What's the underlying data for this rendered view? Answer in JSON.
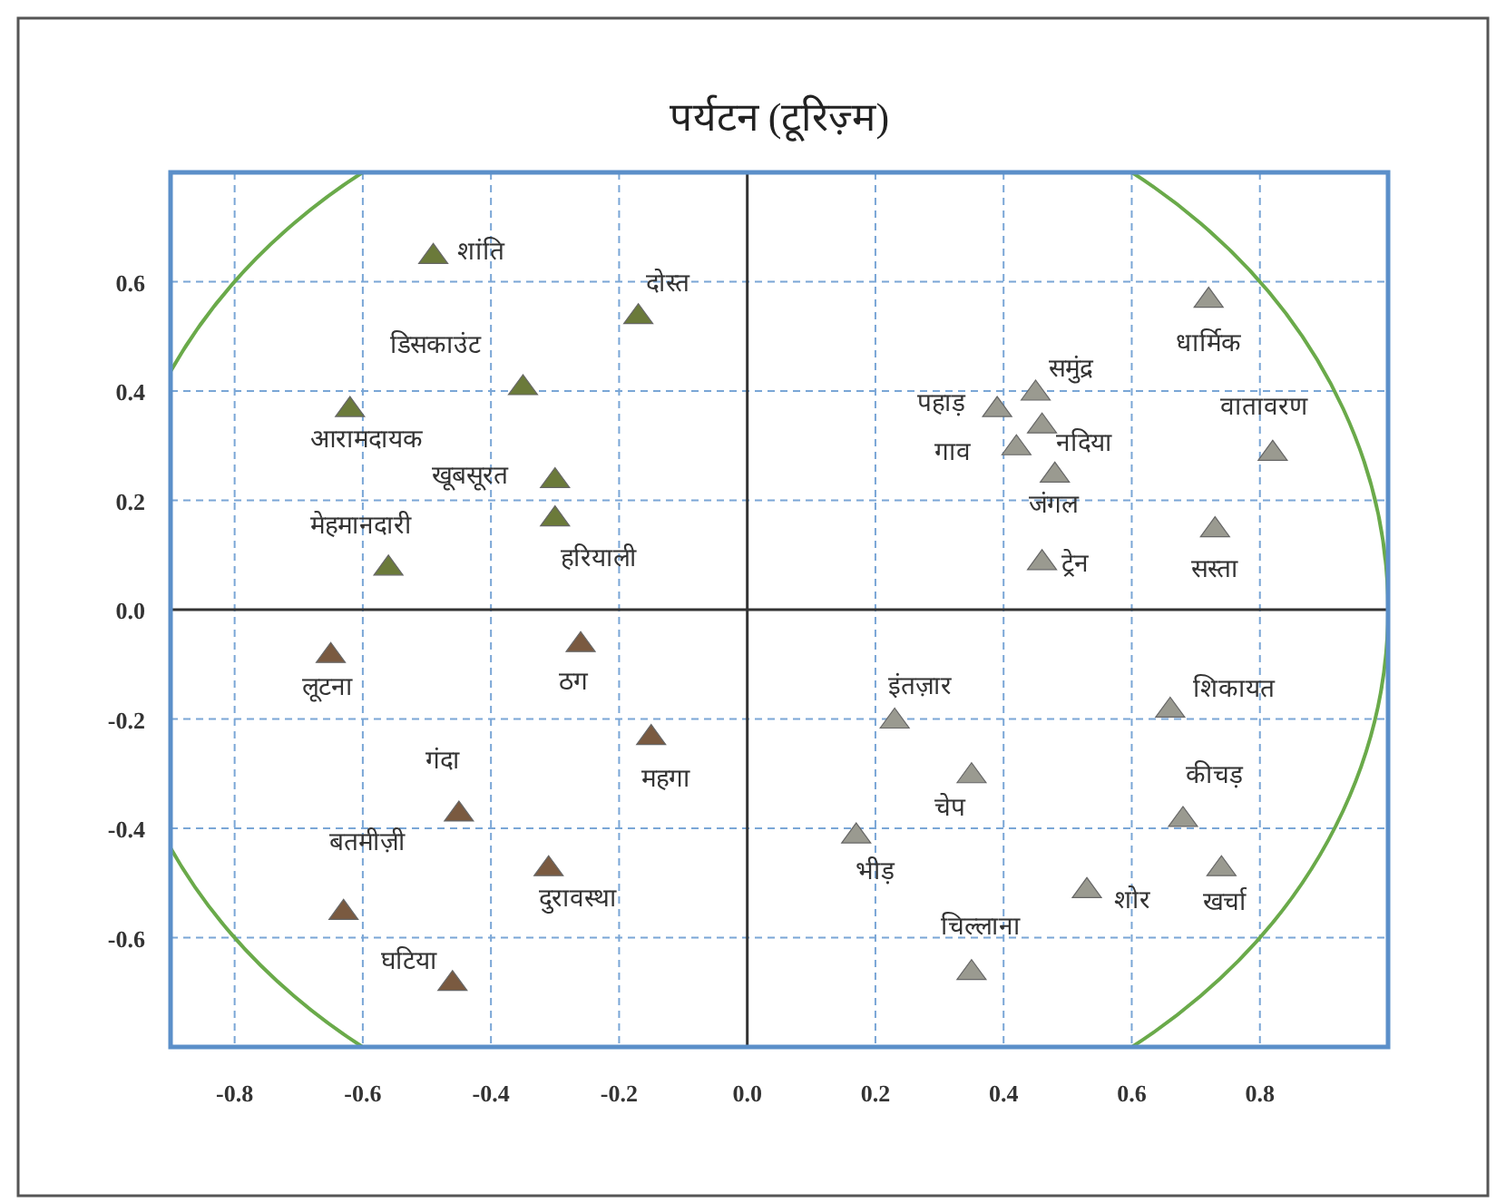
{
  "chart_data": {
    "type": "scatter",
    "title": "पर्यटन (टूरिज़्म)",
    "marker": "triangle",
    "grid": true,
    "xlim": [
      -0.9,
      1.0
    ],
    "ylim": [
      -0.8,
      0.8
    ],
    "xticks": [
      -0.8,
      -0.6,
      -0.4,
      -0.2,
      {
        "value": 0,
        "label": "0.0"
      },
      0.2,
      0.4,
      0.6,
      0.8
    ],
    "yticks": [
      -0.6,
      -0.4,
      -0.2,
      {
        "value": 0,
        "label": "0.0"
      },
      0.2,
      0.4,
      0.6
    ],
    "x": [
      -0.49,
      -0.17,
      -0.35,
      -0.62,
      -0.3,
      -0.3,
      -0.56,
      0.72,
      0.45,
      0.39,
      0.46,
      0.42,
      0.48,
      0.46,
      0.82,
      0.73,
      -0.65,
      -0.26,
      -0.15,
      -0.45,
      -0.31,
      -0.63,
      -0.46,
      0.23,
      0.66,
      0.35,
      0.68,
      0.17,
      0.53,
      0.74,
      0.35
    ],
    "values": [
      0.65,
      0.54,
      0.41,
      0.37,
      0.24,
      0.17,
      0.08,
      0.57,
      0.4,
      0.37,
      0.34,
      0.3,
      0.25,
      0.09,
      0.29,
      0.15,
      -0.08,
      -0.06,
      -0.23,
      -0.37,
      -0.47,
      -0.55,
      -0.68,
      -0.2,
      -0.18,
      -0.3,
      -0.38,
      -0.41,
      -0.51,
      -0.47,
      -0.66
    ],
    "colors": [
      "#6b7a3a",
      "#6b7a3a",
      "#6b7a3a",
      "#6b7a3a",
      "#6b7a3a",
      "#6b7a3a",
      "#6b7a3a",
      "#9a9a90",
      "#9a9a90",
      "#9a9a90",
      "#9a9a90",
      "#9a9a90",
      "#9a9a90",
      "#9a9a90",
      "#9a9a90",
      "#9a9a90",
      "#7a5a40",
      "#7a5a40",
      "#7a5a40",
      "#7a5a40",
      "#7a5a40",
      "#7a5a40",
      "#7a5a40",
      "#9a9a90",
      "#9a9a90",
      "#9a9a90",
      "#9a9a90",
      "#9a9a90",
      "#9a9a90",
      "#9a9a90",
      "#9a9a90"
    ],
    "annotations": [
      {
        "text": "शांति",
        "x": -0.49,
        "y": 0.65
      },
      {
        "text": "दोस्त",
        "x": -0.17,
        "y": 0.54
      },
      {
        "text": "डिसकाउंट",
        "x": -0.35,
        "y": 0.41
      },
      {
        "text": "आरामदायक",
        "x": -0.62,
        "y": 0.37
      },
      {
        "text": "खूबसूरत",
        "x": -0.3,
        "y": 0.24
      },
      {
        "text": "हरियाली",
        "x": -0.3,
        "y": 0.17
      },
      {
        "text": "मेहमानदारी",
        "x": -0.56,
        "y": 0.08
      },
      {
        "text": "धार्मिक",
        "x": 0.72,
        "y": 0.57
      },
      {
        "text": "समुंद्र",
        "x": 0.45,
        "y": 0.4
      },
      {
        "text": "पहाड़",
        "x": 0.39,
        "y": 0.37
      },
      {
        "text": "नदिया",
        "x": 0.46,
        "y": 0.34
      },
      {
        "text": "गाव",
        "x": 0.42,
        "y": 0.3
      },
      {
        "text": "जंगल",
        "x": 0.48,
        "y": 0.25
      },
      {
        "text": "ट्रेन",
        "x": 0.46,
        "y": 0.09
      },
      {
        "text": "वातावरण",
        "x": 0.82,
        "y": 0.29
      },
      {
        "text": "सस्ता",
        "x": 0.73,
        "y": 0.15
      },
      {
        "text": "लूटना",
        "x": -0.65,
        "y": -0.08
      },
      {
        "text": "ठग",
        "x": -0.26,
        "y": -0.06
      },
      {
        "text": "महगा",
        "x": -0.15,
        "y": -0.23
      },
      {
        "text": "गंदा",
        "x": -0.45,
        "y": -0.37
      },
      {
        "text": "दुरावस्था",
        "x": -0.31,
        "y": -0.47
      },
      {
        "text": "बतमीज़ी",
        "x": -0.63,
        "y": -0.55
      },
      {
        "text": "घटिया",
        "x": -0.46,
        "y": -0.68
      },
      {
        "text": "इंतज़ार",
        "x": 0.23,
        "y": -0.2
      },
      {
        "text": "शिकायत",
        "x": 0.66,
        "y": -0.18
      },
      {
        "text": "चेप",
        "x": 0.35,
        "y": -0.3
      },
      {
        "text": "कीचड़",
        "x": 0.68,
        "y": -0.38
      },
      {
        "text": "भीड़",
        "x": 0.17,
        "y": -0.41
      },
      {
        "text": "शोर",
        "x": 0.53,
        "y": -0.51
      },
      {
        "text": "खर्चा",
        "x": 0.74,
        "y": -0.47
      },
      {
        "text": "चिल्लाना",
        "x": 0.35,
        "y": -0.66
      }
    ]
  }
}
